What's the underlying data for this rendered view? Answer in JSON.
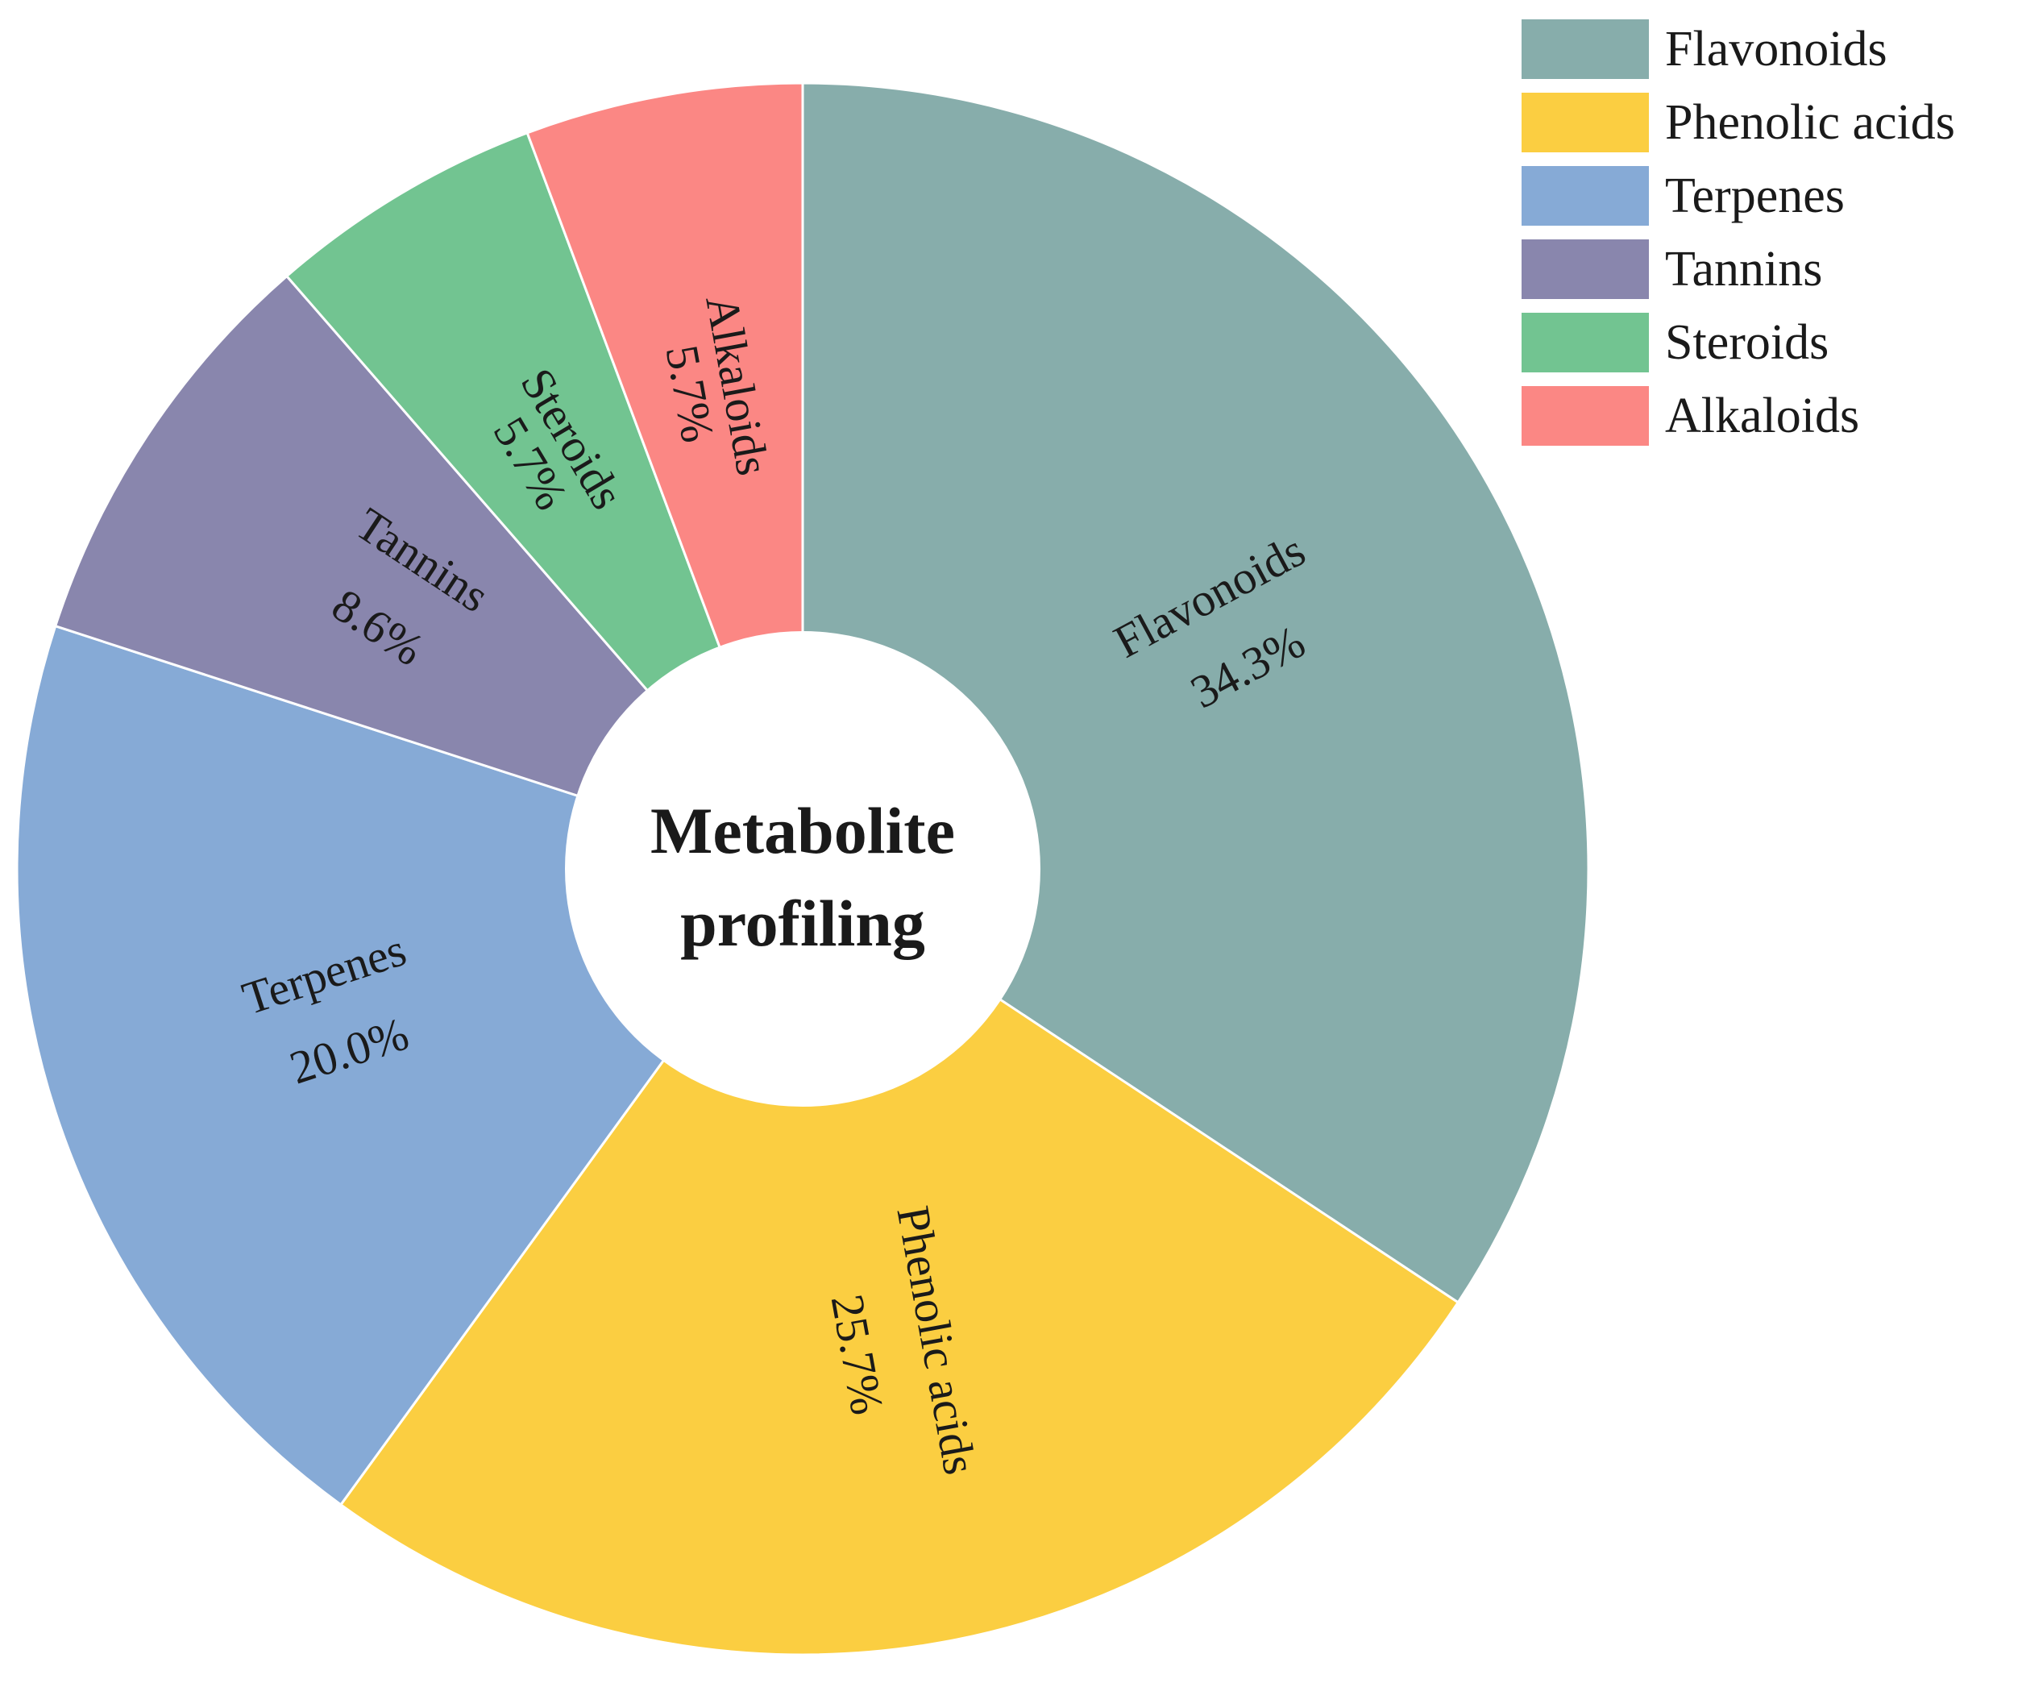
{
  "chart_data": {
    "type": "pie",
    "variant": "donut",
    "center_title": [
      "Metabolite",
      "profiling"
    ],
    "unit": "%",
    "series": [
      {
        "name": "Flavonoids",
        "value": 34.3,
        "color": "#87ADAB",
        "label": "Flavonoids",
        "value_label": "34.3%"
      },
      {
        "name": "Phenolic acids",
        "value": 25.7,
        "color": "#FBCE41",
        "label": "Phenolic acids",
        "value_label": "25.7%"
      },
      {
        "name": "Terpenes",
        "value": 20.0,
        "color": "#86AAD6",
        "label": "Terpenes",
        "value_label": "20.0%"
      },
      {
        "name": "Tannins",
        "value": 8.6,
        "color": "#8986AD",
        "label": "Tannins",
        "value_label": "8.6%"
      },
      {
        "name": "Steroids",
        "value": 5.7,
        "color": "#72C491",
        "label": "Steroids",
        "value_label": "5.7%"
      },
      {
        "name": "Alkaloids",
        "value": 5.7,
        "color": "#FB8784",
        "label": "Alkaloids",
        "value_label": "5.7%"
      }
    ],
    "legend": {
      "placement": "top-right",
      "entries": [
        "Flavonoids",
        "Phenolic acids",
        "Terpenes",
        "Tannins",
        "Steroids",
        "Alkaloids"
      ]
    }
  }
}
